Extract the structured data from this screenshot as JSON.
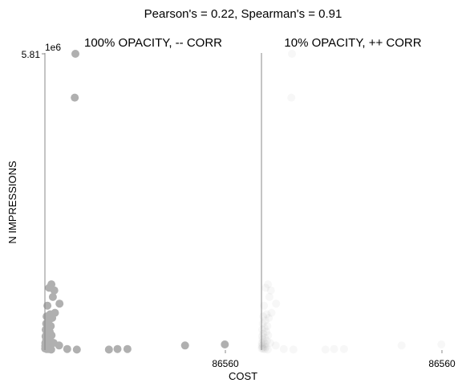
{
  "chart_data": {
    "suptitle": "Pearson's = 0.22, Spearman's = 0.91",
    "xlabel": "COST",
    "ylabel": "N IMPRESSIONS",
    "y_offset_text": "1e6",
    "xlim": [
      0,
      86560
    ],
    "ylim": [
      0,
      5.81
    ],
    "xtick_label": "86560",
    "ytick_label": "5.81",
    "point_color": "#b0b0b0",
    "axis_color": "#888888",
    "points": [
      {
        "x": 14600,
        "y": 5.81
      },
      {
        "x": 14300,
        "y": 4.95
      },
      {
        "x": 3100,
        "y": 1.29
      },
      {
        "x": 2000,
        "y": 1.22
      },
      {
        "x": 4500,
        "y": 1.17
      },
      {
        "x": 3800,
        "y": 1.04
      },
      {
        "x": 7000,
        "y": 0.91
      },
      {
        "x": 1200,
        "y": 0.87
      },
      {
        "x": 4800,
        "y": 0.73
      },
      {
        "x": 2500,
        "y": 0.7
      },
      {
        "x": 800,
        "y": 0.66
      },
      {
        "x": 3500,
        "y": 0.63
      },
      {
        "x": 1800,
        "y": 0.58
      },
      {
        "x": 600,
        "y": 0.52
      },
      {
        "x": 2800,
        "y": 0.47
      },
      {
        "x": 1500,
        "y": 0.43
      },
      {
        "x": 400,
        "y": 0.4
      },
      {
        "x": 2300,
        "y": 0.36
      },
      {
        "x": 900,
        "y": 0.32
      },
      {
        "x": 3200,
        "y": 0.29
      },
      {
        "x": 300,
        "y": 0.27
      },
      {
        "x": 1600,
        "y": 0.24
      },
      {
        "x": 600,
        "y": 0.21
      },
      {
        "x": 2600,
        "y": 0.18
      },
      {
        "x": 1000,
        "y": 0.16
      },
      {
        "x": 200,
        "y": 0.14
      },
      {
        "x": 4200,
        "y": 0.14
      },
      {
        "x": 1900,
        "y": 0.12
      },
      {
        "x": 700,
        "y": 0.1
      },
      {
        "x": 150,
        "y": 0.08
      },
      {
        "x": 1300,
        "y": 0.07
      },
      {
        "x": 2100,
        "y": 0.06
      },
      {
        "x": 500,
        "y": 0.05
      },
      {
        "x": 6800,
        "y": 0.09
      },
      {
        "x": 100,
        "y": 0.03
      },
      {
        "x": 900,
        "y": 0.02
      },
      {
        "x": 1700,
        "y": 0.02
      },
      {
        "x": 3000,
        "y": 0.01
      },
      {
        "x": 10700,
        "y": 0.02
      },
      {
        "x": 15300,
        "y": 0.01
      },
      {
        "x": 30700,
        "y": 0.01
      },
      {
        "x": 34800,
        "y": 0.02
      },
      {
        "x": 39600,
        "y": 0.02
      },
      {
        "x": 67200,
        "y": 0.09
      },
      {
        "x": 86300,
        "y": 0.11
      }
    ],
    "panels": [
      {
        "title": "100% OPACITY, -- CORR",
        "opacity": 1.0
      },
      {
        "title": "10% OPACITY, ++ CORR",
        "opacity": 0.1
      }
    ]
  }
}
